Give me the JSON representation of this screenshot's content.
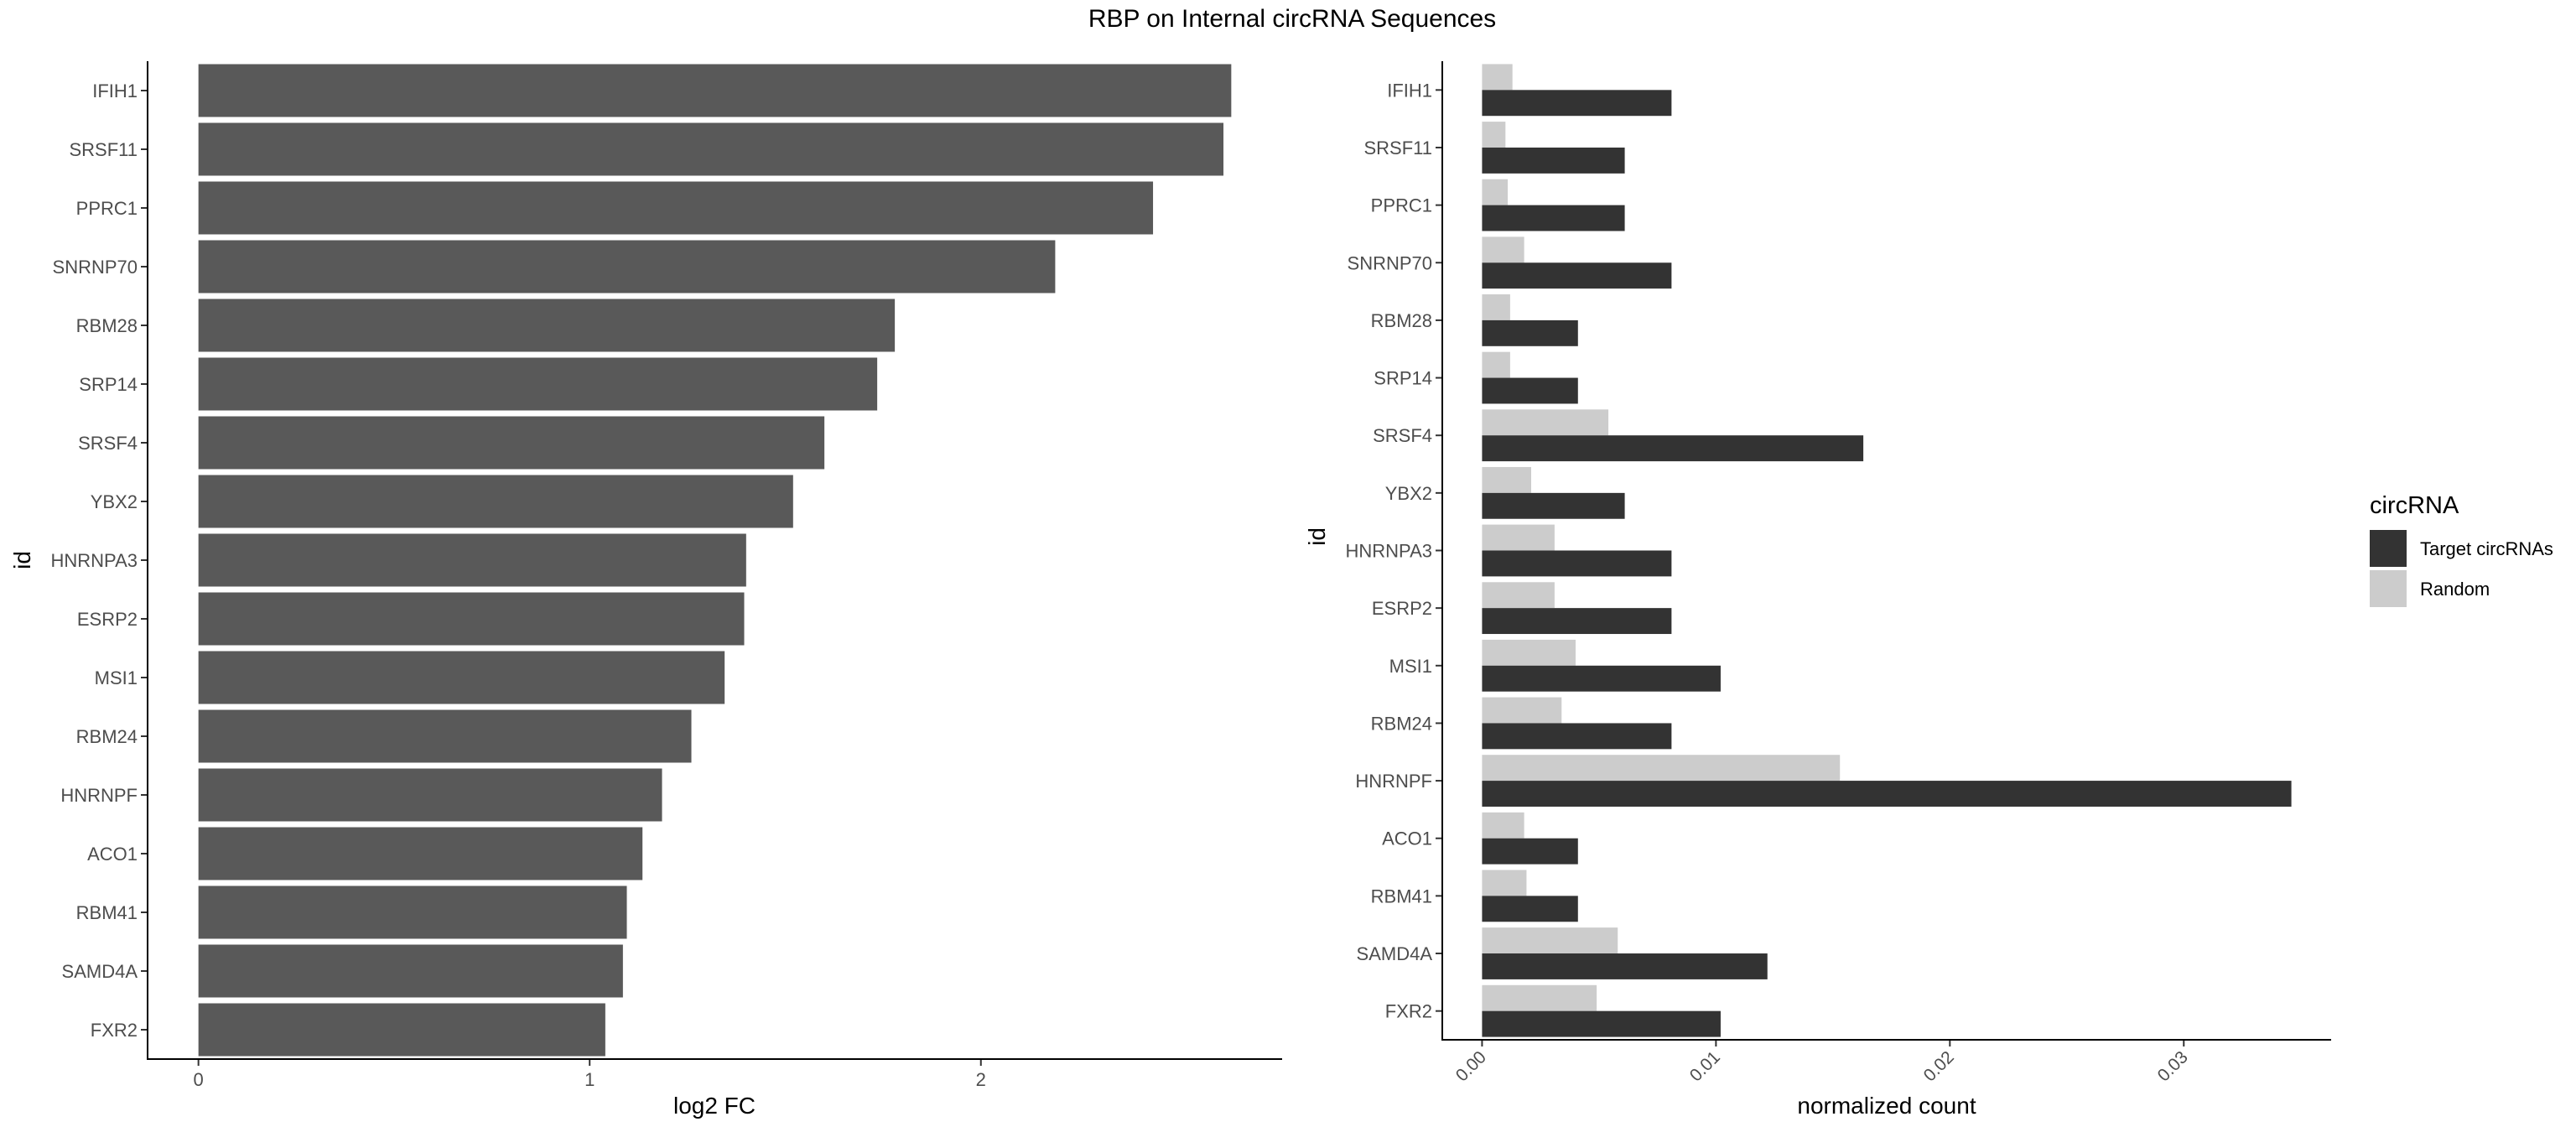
{
  "title": "RBP on Internal circRNA Sequences",
  "chart_data": [
    {
      "type": "bar",
      "orientation": "horizontal",
      "categories": [
        "IFIH1",
        "SRSF11",
        "PPRC1",
        "SNRNP70",
        "RBM28",
        "SRP14",
        "SRSF4",
        "YBX2",
        "HNRNPA3",
        "ESRP2",
        "MSI1",
        "RBM24",
        "HNRNPF",
        "ACO1",
        "RBM41",
        "SAMD4A",
        "FXR2"
      ],
      "values": [
        2.64,
        2.62,
        2.44,
        2.19,
        1.78,
        1.735,
        1.6,
        1.52,
        1.4,
        1.395,
        1.345,
        1.26,
        1.185,
        1.135,
        1.095,
        1.085,
        1.04
      ],
      "xlabel": "log2 FC",
      "ylabel": "id",
      "xlim": [
        -0.13,
        2.77
      ],
      "xticks": [
        "0",
        "1",
        "2"
      ],
      "bar_color": "#595959",
      "grid": false
    },
    {
      "type": "bar",
      "orientation": "horizontal",
      "grouped": true,
      "categories": [
        "IFIH1",
        "SRSF11",
        "PPRC1",
        "SNRNP70",
        "RBM28",
        "SRP14",
        "SRSF4",
        "YBX2",
        "HNRNPA3",
        "ESRP2",
        "MSI1",
        "RBM24",
        "HNRNPF",
        "ACO1",
        "RBM41",
        "SAMD4A",
        "FXR2"
      ],
      "series": [
        {
          "name": "Target circRNAs",
          "color": "#333333",
          "values": [
            0.0081,
            0.0061,
            0.0061,
            0.0081,
            0.0041,
            0.0041,
            0.0163,
            0.0061,
            0.0081,
            0.0081,
            0.0102,
            0.0081,
            0.0346,
            0.0041,
            0.0041,
            0.0122,
            0.0102
          ]
        },
        {
          "name": "Random",
          "color": "#cccccc",
          "values": [
            0.0013,
            0.001,
            0.0011,
            0.0018,
            0.0012,
            0.0012,
            0.0054,
            0.0021,
            0.0031,
            0.0031,
            0.004,
            0.0034,
            0.0153,
            0.0018,
            0.0019,
            0.0058,
            0.0049
          ]
        }
      ],
      "xlabel": "normalized count",
      "ylabel": "id",
      "xlim": [
        -0.0017,
        0.0363
      ],
      "xticks": [
        "0.00",
        "0.01",
        "0.02",
        "0.03"
      ],
      "legend": {
        "title": "circRNA",
        "position": "right"
      },
      "grid": false
    }
  ]
}
